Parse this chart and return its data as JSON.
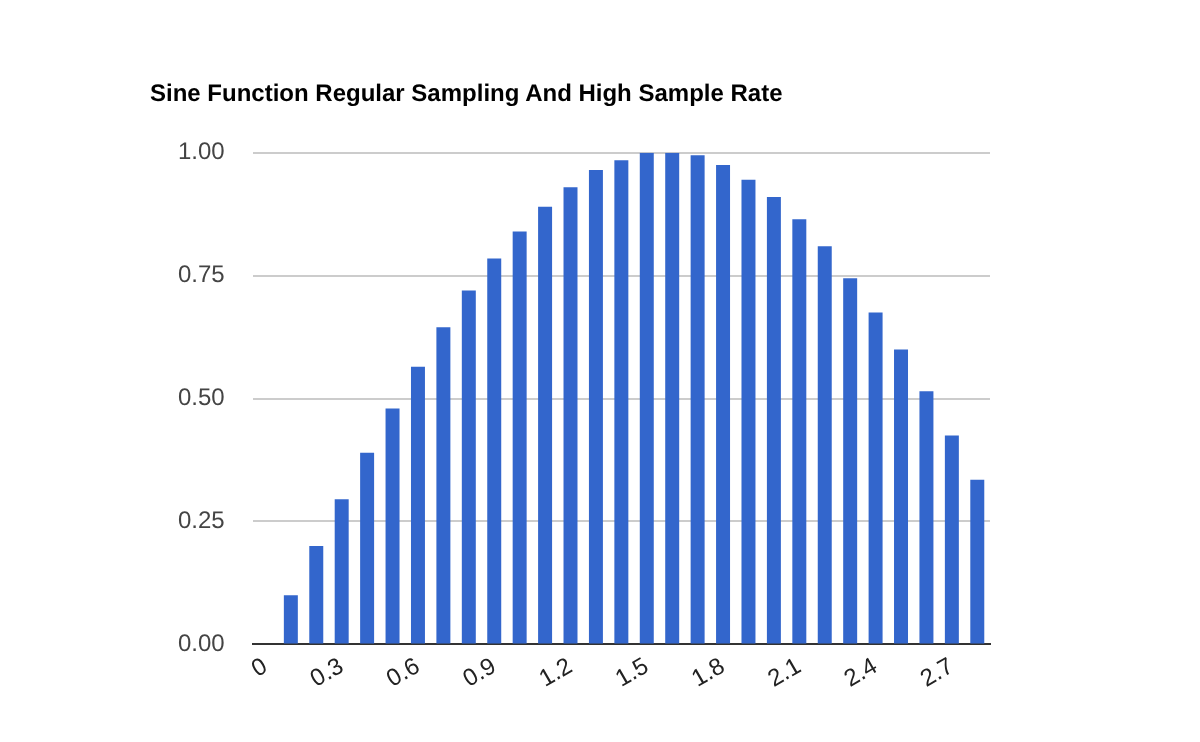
{
  "chart_data": {
    "type": "bar",
    "title": "Sine Function Regular Sampling And High Sample Rate",
    "categories": [
      "0",
      null,
      null,
      "0.3",
      null,
      null,
      "0.6",
      null,
      null,
      "0.9",
      null,
      null,
      "1.2",
      null,
      null,
      "1.5",
      null,
      null,
      "1.8",
      null,
      null,
      "2.1",
      null,
      null,
      "2.4",
      null,
      null,
      "2.7",
      null
    ],
    "values": [
      0,
      0.1,
      0.2,
      0.295,
      0.39,
      0.48,
      0.565,
      0.645,
      0.72,
      0.785,
      0.84,
      0.89,
      0.93,
      0.965,
      0.985,
      1.0,
      1.0,
      0.995,
      0.975,
      0.945,
      0.91,
      0.865,
      0.81,
      0.745,
      0.675,
      0.6,
      0.515,
      0.425,
      0.335
    ],
    "color": "#3366cc",
    "ylim": [
      0,
      1
    ],
    "yticks": [
      {
        "value": 0,
        "label": "0.00"
      },
      {
        "value": 0.25,
        "label": "0.25"
      },
      {
        "value": 0.5,
        "label": "0.50"
      },
      {
        "value": 0.75,
        "label": "0.75"
      },
      {
        "value": 1,
        "label": "1.00"
      }
    ],
    "grid": "y",
    "legend": false
  }
}
